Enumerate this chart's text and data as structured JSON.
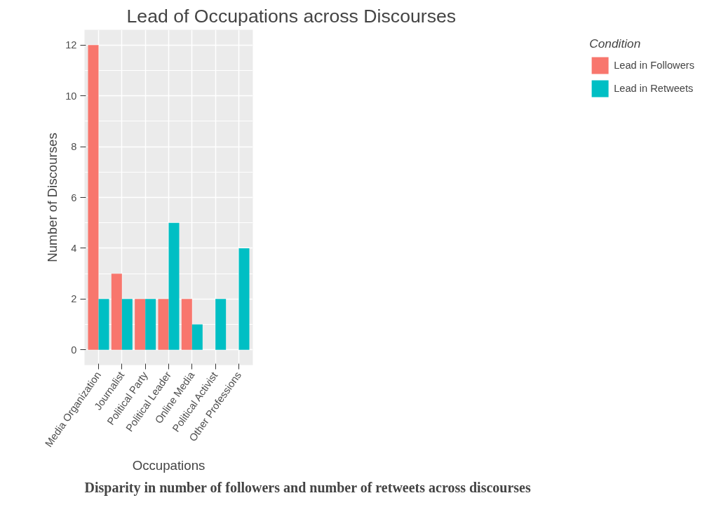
{
  "chart_data": {
    "type": "bar",
    "title": "Lead of Occupations across Discourses",
    "xlabel": "Occupations",
    "ylabel": "Number of Discourses",
    "legend_title": "Condition",
    "categories": [
      "Media Organization",
      "Journalist",
      "Political Party",
      "Political Leader",
      "Online Media",
      "Political Activist",
      "Other Professions"
    ],
    "series": [
      {
        "name": "Lead in Followers",
        "color": "#f8766d",
        "values": [
          12,
          3,
          2,
          2,
          2,
          null,
          null
        ]
      },
      {
        "name": "Lead in Retweets",
        "color": "#00bfc4",
        "values": [
          2,
          2,
          2,
          5,
          1,
          2,
          4
        ]
      }
    ],
    "ylim": [
      -0.6,
      12.6
    ],
    "yticks": [
      0,
      2,
      4,
      6,
      8,
      10,
      12
    ],
    "grid": true,
    "legend": "right",
    "annotations": [
      "Disparity in number of followers and number of retweets across discourses"
    ]
  }
}
